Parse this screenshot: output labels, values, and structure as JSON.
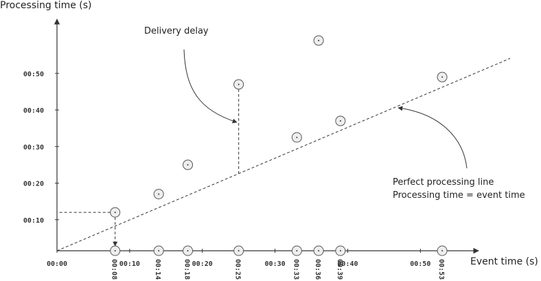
{
  "chart_data": {
    "type": "scatter",
    "y_label": "Processing time (s)",
    "x_label": "Event time (s)",
    "annotations": [
      "Delivery delay",
      "Perfect processing line",
      "Processing time = event time"
    ],
    "x": [
      8,
      14,
      18,
      25,
      33,
      36,
      39,
      53
    ],
    "x_labels": [
      "00:08",
      "00:14",
      "00:18",
      "00:25",
      "00:33",
      "00:36",
      "00:39",
      "00:53"
    ],
    "series": [
      {
        "color": "#555555",
        "values": [
          12,
          17,
          25,
          47,
          32.5,
          59,
          37,
          49
        ]
      }
    ],
    "xlim": [
      0,
      58
    ],
    "ylim": [
      0,
      65
    ],
    "xticks": [
      {
        "value": 0,
        "label": "00:00"
      },
      {
        "value": 10,
        "label": "00:10"
      },
      {
        "value": 20,
        "label": "00:20"
      },
      {
        "value": 30,
        "label": "00:30"
      },
      {
        "value": 40,
        "label": "00:40"
      },
      {
        "value": 50,
        "label": "00:50"
      }
    ],
    "yticks": [
      {
        "value": 10,
        "label": "00:10"
      },
      {
        "value": 20,
        "label": "00:20"
      },
      {
        "value": 30,
        "label": "00:30"
      },
      {
        "value": 40,
        "label": "00:40"
      },
      {
        "value": 50,
        "label": "00:50"
      }
    ]
  }
}
